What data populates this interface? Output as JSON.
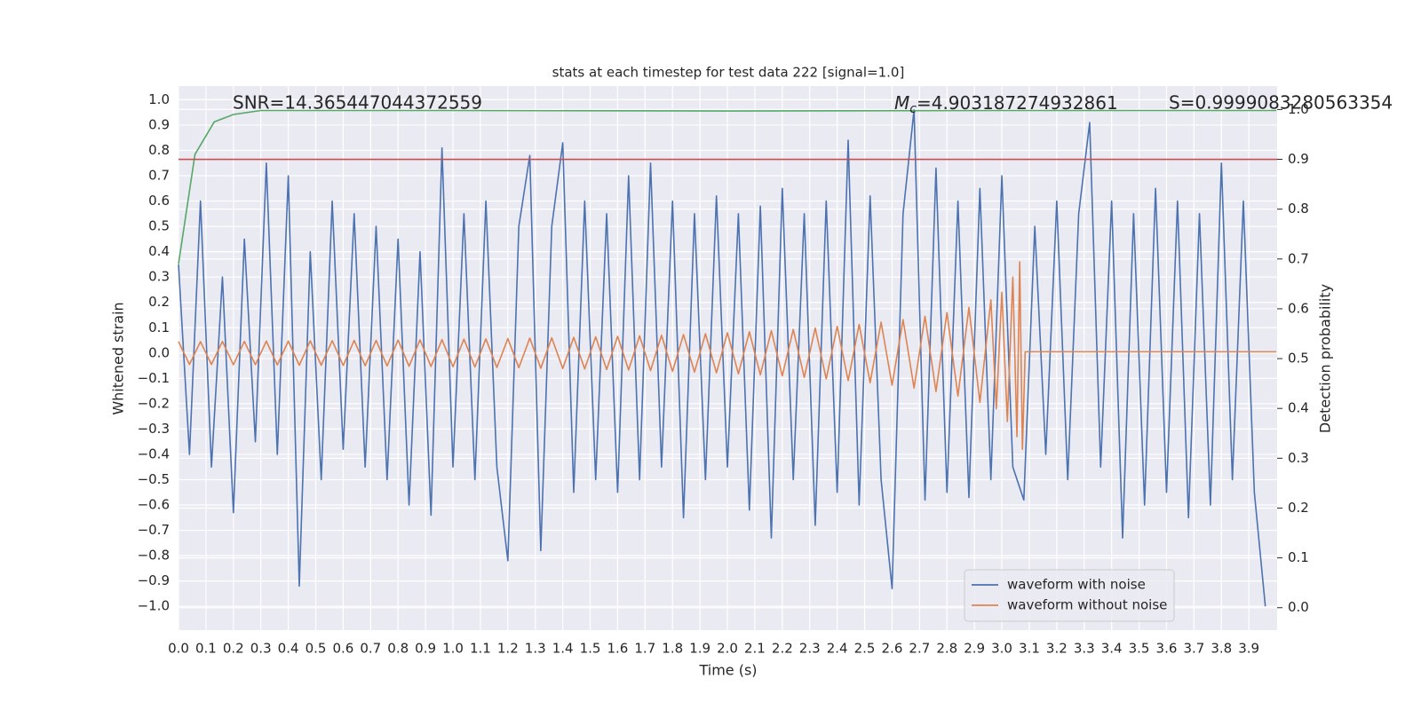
{
  "chart_data": {
    "type": "line",
    "title": "stats at each timestep for test data 222 [signal=1.0]",
    "xlabel": "Time (s)",
    "ylabel": "Whitened strain",
    "y2label": "Detection probability",
    "annotations": [
      {
        "text": "SNR=14.365447044372559"
      },
      {
        "symbol": "M",
        "subscript": "c",
        "text": "=4.903187274932861"
      },
      {
        "text": "S=0.9999083280563354"
      }
    ],
    "grid": true,
    "legend": "lower right",
    "xlim": [
      0,
      4.003
    ],
    "ylim": [
      -1.094,
      1.054
    ],
    "y2lim": [
      -0.045,
      1.047
    ],
    "xticks": [
      {
        "value": 0,
        "label": "0.0"
      },
      0.1,
      0.2,
      0.3,
      0.4,
      0.5,
      0.6,
      0.7,
      0.8,
      0.9,
      {
        "value": 1,
        "label": "1.0"
      },
      1.1,
      1.2,
      1.3,
      1.4,
      1.5,
      1.6,
      1.7,
      1.8,
      1.9,
      {
        "value": 2,
        "label": "2.0"
      },
      2.1,
      2.2,
      2.3,
      2.4,
      2.5,
      2.6,
      2.7,
      2.8,
      2.9,
      {
        "value": 3,
        "label": "3.0"
      },
      3.1,
      3.2,
      3.3,
      3.4,
      3.5,
      3.6,
      3.7,
      3.8,
      3.9
    ],
    "yticks": [
      {
        "value": 1,
        "label": "1.0"
      },
      0.9,
      0.8,
      0.7,
      0.6,
      0.5,
      0.4,
      0.3,
      0.2,
      0.1,
      {
        "value": 0,
        "label": "0.0"
      },
      {
        "value": -0.1,
        "label": "−0.1"
      },
      {
        "value": -0.2,
        "label": "−0.2"
      },
      {
        "value": -0.3,
        "label": "−0.3"
      },
      {
        "value": -0.4,
        "label": "−0.4"
      },
      {
        "value": -0.5,
        "label": "−0.5"
      },
      {
        "value": -0.6,
        "label": "−0.6"
      },
      {
        "value": -0.7,
        "label": "−0.7"
      },
      {
        "value": -0.8,
        "label": "−0.8"
      },
      {
        "value": -0.9,
        "label": "−0.9"
      },
      {
        "value": -1,
        "label": "−1.0"
      }
    ],
    "y2ticks": [
      {
        "value": 0,
        "label": "0.0"
      },
      0.1,
      0.2,
      0.3,
      0.4,
      0.5,
      0.6,
      0.7,
      0.8,
      0.9,
      {
        "value": 1,
        "label": "1.0"
      }
    ],
    "series": [
      {
        "name": "waveform with noise",
        "color": "#4c72b0",
        "x": [
          0,
          0.04,
          0.08,
          0.12,
          0.16,
          0.2,
          0.24,
          0.28,
          0.32,
          0.36,
          0.4,
          0.44,
          0.48,
          0.52,
          0.56,
          0.6,
          0.64,
          0.68,
          0.72,
          0.76,
          0.8,
          0.84,
          0.88,
          0.92,
          0.96,
          1,
          1.04,
          1.08,
          1.12,
          1.16,
          1.2,
          1.24,
          1.28,
          1.32,
          1.36,
          1.4,
          1.44,
          1.48,
          1.52,
          1.56,
          1.6,
          1.64,
          1.68,
          1.72,
          1.76,
          1.8,
          1.84,
          1.88,
          1.92,
          1.96,
          2,
          2.04,
          2.08,
          2.12,
          2.16,
          2.2,
          2.24,
          2.28,
          2.32,
          2.36,
          2.4,
          2.44,
          2.48,
          2.52,
          2.56,
          2.6,
          2.64,
          2.68,
          2.72,
          2.76,
          2.8,
          2.84,
          2.88,
          2.92,
          2.96,
          3,
          3.04,
          3.08,
          3.12,
          3.16,
          3.2,
          3.24,
          3.28,
          3.32,
          3.36,
          3.4,
          3.44,
          3.48,
          3.52,
          3.56,
          3.6,
          3.64,
          3.68,
          3.72,
          3.76,
          3.8,
          3.84,
          3.88,
          3.92,
          3.96
        ],
        "values": [
          0.35,
          -0.4,
          0.6,
          -0.45,
          0.3,
          -0.63,
          0.45,
          -0.35,
          0.75,
          -0.4,
          0.7,
          -0.92,
          0.4,
          -0.5,
          0.6,
          -0.38,
          0.55,
          -0.45,
          0.5,
          -0.5,
          0.45,
          -0.6,
          0.4,
          -0.64,
          0.81,
          -0.45,
          0.55,
          -0.5,
          0.6,
          -0.45,
          -0.82,
          0.5,
          0.78,
          -0.78,
          0.5,
          0.83,
          -0.55,
          0.6,
          -0.5,
          0.55,
          -0.55,
          0.7,
          -0.5,
          0.75,
          -0.45,
          0.6,
          -0.65,
          0.55,
          -0.5,
          0.62,
          -0.45,
          0.55,
          -0.62,
          0.58,
          -0.73,
          0.65,
          -0.5,
          0.55,
          -0.68,
          0.6,
          -0.55,
          0.84,
          -0.6,
          0.62,
          -0.5,
          -0.93,
          0.55,
          0.96,
          -0.58,
          0.73,
          -0.55,
          0.6,
          -0.57,
          0.65,
          -0.5,
          0.7,
          -0.45,
          -0.58,
          0.5,
          -0.4,
          0.6,
          -0.5,
          0.55,
          0.91,
          -0.45,
          0.6,
          -0.73,
          0.55,
          -0.6,
          0.65,
          -0.55,
          0.6,
          -0.65,
          0.55,
          -0.6,
          0.75,
          -0.5,
          0.6,
          -0.55,
          -1.0
        ]
      },
      {
        "name": "waveform without noise",
        "color": "#dd8452",
        "x": [
          0,
          0.04,
          0.08,
          0.12,
          0.16,
          0.2,
          0.24,
          0.28,
          0.32,
          0.36,
          0.4,
          0.44,
          0.48,
          0.52,
          0.56,
          0.6,
          0.64,
          0.68,
          0.72,
          0.76,
          0.8,
          0.84,
          0.88,
          0.92,
          0.96,
          1,
          1.04,
          1.08,
          1.12,
          1.16,
          1.2,
          1.24,
          1.28,
          1.32,
          1.36,
          1.4,
          1.44,
          1.48,
          1.52,
          1.56,
          1.6,
          1.64,
          1.68,
          1.72,
          1.76,
          1.8,
          1.84,
          1.88,
          1.92,
          1.96,
          2,
          2.04,
          2.08,
          2.12,
          2.16,
          2.2,
          2.24,
          2.28,
          2.32,
          2.36,
          2.4,
          2.44,
          2.48,
          2.52,
          2.56,
          2.6,
          2.64,
          2.68,
          2.72,
          2.76,
          2.8,
          2.84,
          2.88,
          2.92,
          2.96,
          2.98,
          3,
          3.02,
          3.04,
          3.055,
          3.065,
          3.075,
          3.085,
          4.0
        ],
        "values": [
          0.045,
          -0.045,
          0.045,
          -0.045,
          0.046,
          -0.046,
          0.046,
          -0.046,
          0.047,
          -0.047,
          0.047,
          -0.048,
          0.048,
          -0.048,
          0.049,
          -0.049,
          0.05,
          -0.05,
          0.05,
          -0.051,
          0.051,
          -0.052,
          0.052,
          -0.053,
          0.053,
          -0.054,
          0.055,
          -0.055,
          0.056,
          -0.057,
          0.057,
          -0.058,
          0.059,
          -0.06,
          0.06,
          -0.061,
          0.062,
          -0.063,
          0.064,
          -0.065,
          0.066,
          -0.067,
          0.068,
          -0.069,
          0.07,
          -0.072,
          0.073,
          -0.075,
          0.076,
          -0.078,
          0.08,
          -0.082,
          0.084,
          -0.086,
          0.088,
          -0.09,
          0.093,
          -0.096,
          0.099,
          -0.102,
          0.105,
          -0.109,
          0.113,
          -0.117,
          0.122,
          -0.127,
          0.132,
          -0.138,
          0.145,
          -0.152,
          0.16,
          -0.17,
          0.18,
          -0.195,
          0.21,
          -0.22,
          0.24,
          -0.27,
          0.3,
          -0.33,
          0.36,
          -0.38,
          0.005,
          0.005
        ]
      },
      {
        "color": "#55a868",
        "axis": "y2",
        "x": [
          0,
          0.06,
          0.13,
          0.2,
          0.3,
          0.4,
          1.0,
          2.0,
          3.0,
          4.0
        ],
        "values": [
          0.69,
          0.91,
          0.975,
          0.99,
          0.998,
          0.998,
          0.998,
          0.997,
          0.998,
          0.998
        ]
      }
    ],
    "hlines": [
      {
        "value": 0.9,
        "axis": "y2",
        "color": "#c44e52"
      }
    ]
  }
}
